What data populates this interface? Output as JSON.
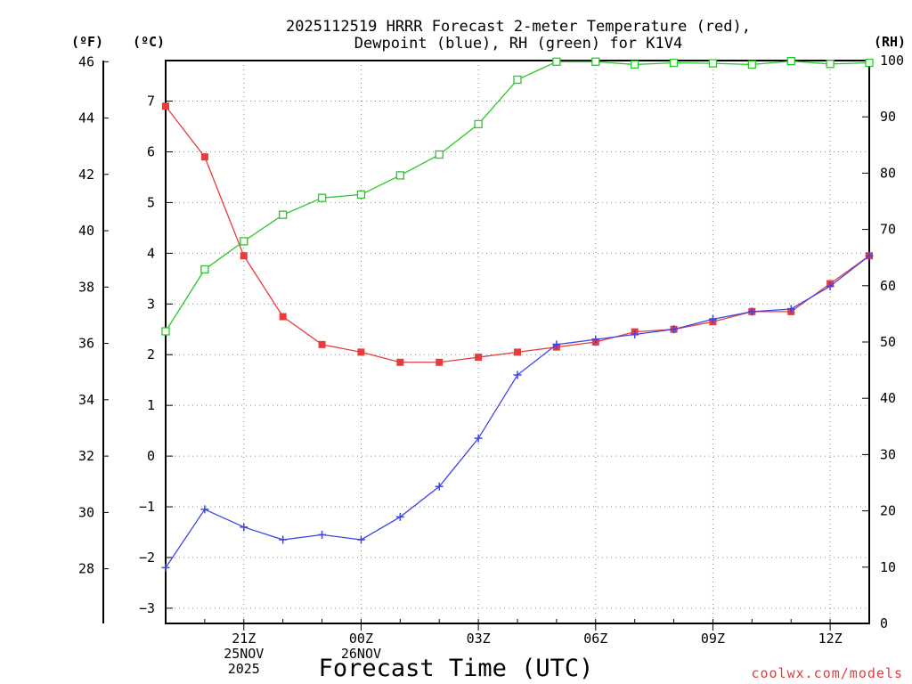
{
  "chart_data": {
    "type": "line",
    "title": [
      "2025112519 HRRR Forecast 2-meter Temperature (red),",
      "Dewpoint (blue), RH (green) for K1V4"
    ],
    "xlabel": "Forecast Time (UTC)",
    "units": {
      "left_outer": "(ºF)",
      "left_inner": "(ºC)",
      "right": "(RH)"
    },
    "credit": "coolwx.com/models",
    "x_hours": [
      0,
      1,
      2,
      3,
      4,
      5,
      6,
      7,
      8,
      9,
      10,
      11,
      12,
      13,
      14,
      15,
      16,
      17,
      18
    ],
    "x_ticks": [
      {
        "hour": 2,
        "lines": [
          "21Z",
          "25NOV",
          "2025"
        ]
      },
      {
        "hour": 5,
        "lines": [
          "00Z",
          "26NOV"
        ]
      },
      {
        "hour": 8,
        "lines": [
          "03Z"
        ]
      },
      {
        "hour": 11,
        "lines": [
          "06Z"
        ]
      },
      {
        "hour": 14,
        "lines": [
          "09Z"
        ]
      },
      {
        "hour": 17,
        "lines": [
          "12Z"
        ]
      }
    ],
    "y_celsius": {
      "range": [
        -3.3,
        7.8
      ],
      "ticks": [
        -3,
        -2,
        -1,
        0,
        1,
        2,
        3,
        4,
        5,
        6,
        7
      ]
    },
    "y_fahrenheit": {
      "range": [
        26.06,
        46.04
      ],
      "ticks": [
        28,
        30,
        32,
        34,
        36,
        38,
        40,
        42,
        44,
        46
      ]
    },
    "y_rh": {
      "range": [
        0,
        100
      ],
      "ticks": [
        0,
        10,
        20,
        30,
        40,
        50,
        60,
        70,
        80,
        90,
        100
      ]
    },
    "series": [
      {
        "name": "Temperature",
        "axis": "celsius",
        "color": "#e83c3c",
        "marker": "filled-square",
        "values": [
          6.9,
          5.9,
          3.95,
          2.75,
          2.2,
          2.05,
          1.85,
          1.85,
          1.95,
          2.05,
          2.15,
          2.25,
          2.45,
          2.5,
          2.65,
          2.85,
          2.85,
          3.4,
          3.95
        ]
      },
      {
        "name": "Dewpoint",
        "axis": "celsius",
        "color": "#3c46e8",
        "marker": "plus",
        "values": [
          -2.2,
          -1.05,
          -1.4,
          -1.65,
          -1.55,
          -1.65,
          -1.2,
          -0.6,
          0.35,
          1.6,
          2.2,
          2.3,
          2.4,
          2.5,
          2.7,
          2.85,
          2.9,
          3.35,
          3.95
        ]
      },
      {
        "name": "RH",
        "axis": "rh",
        "color": "#28c828",
        "marker": "open-square",
        "values": [
          51.9,
          62.9,
          67.9,
          72.6,
          75.6,
          76.2,
          79.6,
          83.3,
          88.7,
          96.6,
          99.8,
          99.8,
          99.3,
          99.6,
          99.5,
          99.3,
          99.9,
          99.4,
          99.6
        ]
      }
    ]
  }
}
